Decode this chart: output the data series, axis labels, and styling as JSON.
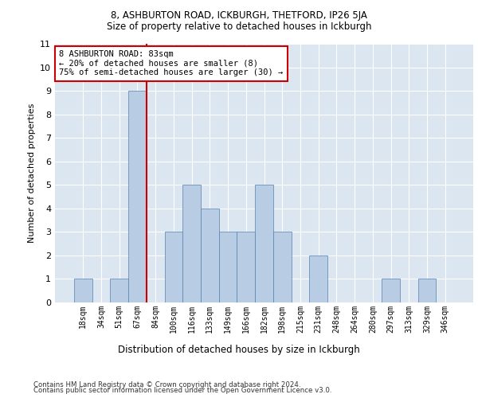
{
  "title1": "8, ASHBURTON ROAD, ICKBURGH, THETFORD, IP26 5JA",
  "title2": "Size of property relative to detached houses in Ickburgh",
  "xlabel": "Distribution of detached houses by size in Ickburgh",
  "ylabel": "Number of detached properties",
  "categories": [
    "18sqm",
    "34sqm",
    "51sqm",
    "67sqm",
    "84sqm",
    "100sqm",
    "116sqm",
    "133sqm",
    "149sqm",
    "166sqm",
    "182sqm",
    "198sqm",
    "215sqm",
    "231sqm",
    "248sqm",
    "264sqm",
    "280sqm",
    "297sqm",
    "313sqm",
    "329sqm",
    "346sqm"
  ],
  "values": [
    1,
    0,
    1,
    9,
    0,
    3,
    5,
    4,
    3,
    3,
    5,
    3,
    0,
    2,
    0,
    0,
    0,
    1,
    0,
    1,
    0
  ],
  "bar_color": "#b8cce4",
  "bar_edge_color": "#5580b0",
  "property_line_index": 4,
  "annotation_title": "8 ASHBURTON ROAD: 83sqm",
  "annotation_line1": "← 20% of detached houses are smaller (8)",
  "annotation_line2": "75% of semi-detached houses are larger (30) →",
  "red_line_color": "#cc0000",
  "ylim": [
    0,
    11
  ],
  "yticks": [
    0,
    1,
    2,
    3,
    4,
    5,
    6,
    7,
    8,
    9,
    10,
    11
  ],
  "bg_color": "#dce6f1",
  "grid_color": "#ffffff",
  "footer1": "Contains HM Land Registry data © Crown copyright and database right 2024.",
  "footer2": "Contains public sector information licensed under the Open Government Licence v3.0."
}
